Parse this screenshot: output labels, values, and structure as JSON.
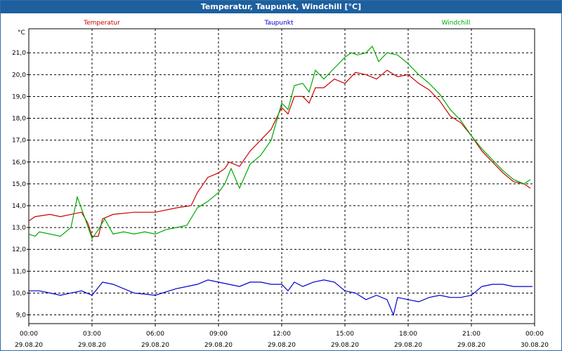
{
  "window": {
    "title": "Temperatur, Taupunkt, Windchill [°C]"
  },
  "chart_data": {
    "type": "line",
    "title": "Temperatur, Taupunkt, Windchill [°C]",
    "ylabel": "°C",
    "ylim": [
      8.6,
      22.1
    ],
    "xlim": [
      0,
      24
    ],
    "grid": true,
    "y_ticks": [
      {
        "value": 9.0,
        "label": "9,0"
      },
      {
        "value": 10.0,
        "label": "10,0"
      },
      {
        "value": 11.0,
        "label": "11,0"
      },
      {
        "value": 12.0,
        "label": "12,0"
      },
      {
        "value": 13.0,
        "label": "13,0"
      },
      {
        "value": 14.0,
        "label": "14,0"
      },
      {
        "value": 15.0,
        "label": "15,0"
      },
      {
        "value": 16.0,
        "label": "16,0"
      },
      {
        "value": 17.0,
        "label": "17,0"
      },
      {
        "value": 18.0,
        "label": "18,0"
      },
      {
        "value": 19.0,
        "label": "19,0"
      },
      {
        "value": 20.0,
        "label": "20,0"
      },
      {
        "value": 21.0,
        "label": "21,0"
      }
    ],
    "x_ticks": [
      {
        "value": 0,
        "time": "00:00",
        "date": "29.08.20"
      },
      {
        "value": 3,
        "time": "03:00",
        "date": "29.08.20"
      },
      {
        "value": 6,
        "time": "06:00",
        "date": "29.08.20"
      },
      {
        "value": 9,
        "time": "09:00",
        "date": "29.08.20"
      },
      {
        "value": 12,
        "time": "12:00",
        "date": "29.08.20"
      },
      {
        "value": 15,
        "time": "15:00",
        "date": "29.08.20"
      },
      {
        "value": 18,
        "time": "18:00",
        "date": "29.08.20"
      },
      {
        "value": 21,
        "time": "21:00",
        "date": "29.08.20"
      },
      {
        "value": 24,
        "time": "00:00",
        "date": "30.08.20"
      }
    ],
    "series": [
      {
        "name": "Temperatur",
        "color": "#cc0000",
        "points": [
          [
            0,
            13.3
          ],
          [
            0.3,
            13.5
          ],
          [
            1,
            13.6
          ],
          [
            1.5,
            13.5
          ],
          [
            2,
            13.6
          ],
          [
            2.5,
            13.7
          ],
          [
            2.8,
            13.2
          ],
          [
            3,
            12.6
          ],
          [
            3.3,
            12.6
          ],
          [
            3.5,
            13.4
          ],
          [
            4,
            13.6
          ],
          [
            5,
            13.7
          ],
          [
            6,
            13.7
          ],
          [
            7,
            13.9
          ],
          [
            7.7,
            14.0
          ],
          [
            8,
            14.6
          ],
          [
            8.5,
            15.3
          ],
          [
            9,
            15.5
          ],
          [
            9.3,
            15.7
          ],
          [
            9.5,
            16.0
          ],
          [
            10,
            15.8
          ],
          [
            10.5,
            16.5
          ],
          [
            11,
            17.0
          ],
          [
            11.5,
            17.5
          ],
          [
            12,
            18.5
          ],
          [
            12.3,
            18.2
          ],
          [
            12.6,
            19.0
          ],
          [
            13,
            19.0
          ],
          [
            13.3,
            18.7
          ],
          [
            13.6,
            19.4
          ],
          [
            14,
            19.4
          ],
          [
            14.5,
            19.8
          ],
          [
            15,
            19.6
          ],
          [
            15.5,
            20.1
          ],
          [
            16,
            20.0
          ],
          [
            16.5,
            19.8
          ],
          [
            17,
            20.2
          ],
          [
            17.5,
            19.9
          ],
          [
            18,
            20.0
          ],
          [
            18.5,
            19.6
          ],
          [
            19,
            19.3
          ],
          [
            19.5,
            18.8
          ],
          [
            20,
            18.1
          ],
          [
            20.5,
            17.8
          ],
          [
            21,
            17.2
          ],
          [
            21.5,
            16.5
          ],
          [
            22,
            16.0
          ],
          [
            22.5,
            15.5
          ],
          [
            23,
            15.1
          ],
          [
            23.5,
            15.0
          ],
          [
            23.8,
            14.8
          ]
        ]
      },
      {
        "name": "Taupunkt",
        "color": "#0000cc",
        "points": [
          [
            0,
            10.1
          ],
          [
            0.5,
            10.1
          ],
          [
            1,
            10.0
          ],
          [
            1.5,
            9.9
          ],
          [
            2,
            10.0
          ],
          [
            2.5,
            10.1
          ],
          [
            3,
            9.9
          ],
          [
            3.5,
            10.5
          ],
          [
            4,
            10.4
          ],
          [
            5,
            10.0
          ],
          [
            6,
            9.9
          ],
          [
            7,
            10.2
          ],
          [
            8,
            10.4
          ],
          [
            8.5,
            10.6
          ],
          [
            9,
            10.5
          ],
          [
            9.5,
            10.4
          ],
          [
            10,
            10.3
          ],
          [
            10.5,
            10.5
          ],
          [
            11,
            10.5
          ],
          [
            11.5,
            10.4
          ],
          [
            12,
            10.4
          ],
          [
            12.3,
            10.1
          ],
          [
            12.6,
            10.5
          ],
          [
            13,
            10.3
          ],
          [
            13.5,
            10.5
          ],
          [
            14,
            10.6
          ],
          [
            14.5,
            10.5
          ],
          [
            15,
            10.1
          ],
          [
            15.5,
            10.0
          ],
          [
            16,
            9.7
          ],
          [
            16.5,
            9.9
          ],
          [
            17,
            9.7
          ],
          [
            17.3,
            9.0
          ],
          [
            17.5,
            9.8
          ],
          [
            18,
            9.7
          ],
          [
            18.5,
            9.6
          ],
          [
            19,
            9.8
          ],
          [
            19.5,
            9.9
          ],
          [
            20,
            9.8
          ],
          [
            20.5,
            9.8
          ],
          [
            21,
            9.9
          ],
          [
            21.5,
            10.3
          ],
          [
            22,
            10.4
          ],
          [
            22.5,
            10.4
          ],
          [
            23,
            10.3
          ],
          [
            23.5,
            10.3
          ],
          [
            23.9,
            10.3
          ]
        ]
      },
      {
        "name": "Windchill",
        "color": "#00aa00",
        "points": [
          [
            0,
            12.7
          ],
          [
            0.3,
            12.6
          ],
          [
            0.5,
            12.8
          ],
          [
            1,
            12.7
          ],
          [
            1.5,
            12.6
          ],
          [
            2,
            13.0
          ],
          [
            2.3,
            14.4
          ],
          [
            2.6,
            13.6
          ],
          [
            3,
            12.5
          ],
          [
            3.3,
            12.9
          ],
          [
            3.6,
            13.4
          ],
          [
            4,
            12.7
          ],
          [
            4.5,
            12.8
          ],
          [
            5,
            12.7
          ],
          [
            5.5,
            12.8
          ],
          [
            6,
            12.7
          ],
          [
            6.5,
            12.9
          ],
          [
            7,
            13.0
          ],
          [
            7.5,
            13.1
          ],
          [
            8,
            13.9
          ],
          [
            8.5,
            14.2
          ],
          [
            9,
            14.6
          ],
          [
            9.3,
            15.0
          ],
          [
            9.6,
            15.7
          ],
          [
            10,
            14.8
          ],
          [
            10.5,
            15.9
          ],
          [
            11,
            16.3
          ],
          [
            11.5,
            17.0
          ],
          [
            12,
            18.7
          ],
          [
            12.3,
            18.4
          ],
          [
            12.6,
            19.5
          ],
          [
            13,
            19.6
          ],
          [
            13.3,
            19.2
          ],
          [
            13.6,
            20.2
          ],
          [
            14,
            19.8
          ],
          [
            14.5,
            20.3
          ],
          [
            15,
            20.8
          ],
          [
            15.3,
            21.0
          ],
          [
            15.6,
            20.9
          ],
          [
            16,
            21.0
          ],
          [
            16.3,
            21.3
          ],
          [
            16.6,
            20.6
          ],
          [
            17,
            21.0
          ],
          [
            17.5,
            20.9
          ],
          [
            18,
            20.5
          ],
          [
            18.5,
            20.0
          ],
          [
            19,
            19.6
          ],
          [
            19.5,
            19.1
          ],
          [
            20,
            18.4
          ],
          [
            20.5,
            17.9
          ],
          [
            21,
            17.2
          ],
          [
            21.5,
            16.6
          ],
          [
            22,
            16.1
          ],
          [
            22.5,
            15.6
          ],
          [
            23,
            15.2
          ],
          [
            23.5,
            15.0
          ],
          [
            23.8,
            15.2
          ]
        ]
      }
    ]
  }
}
